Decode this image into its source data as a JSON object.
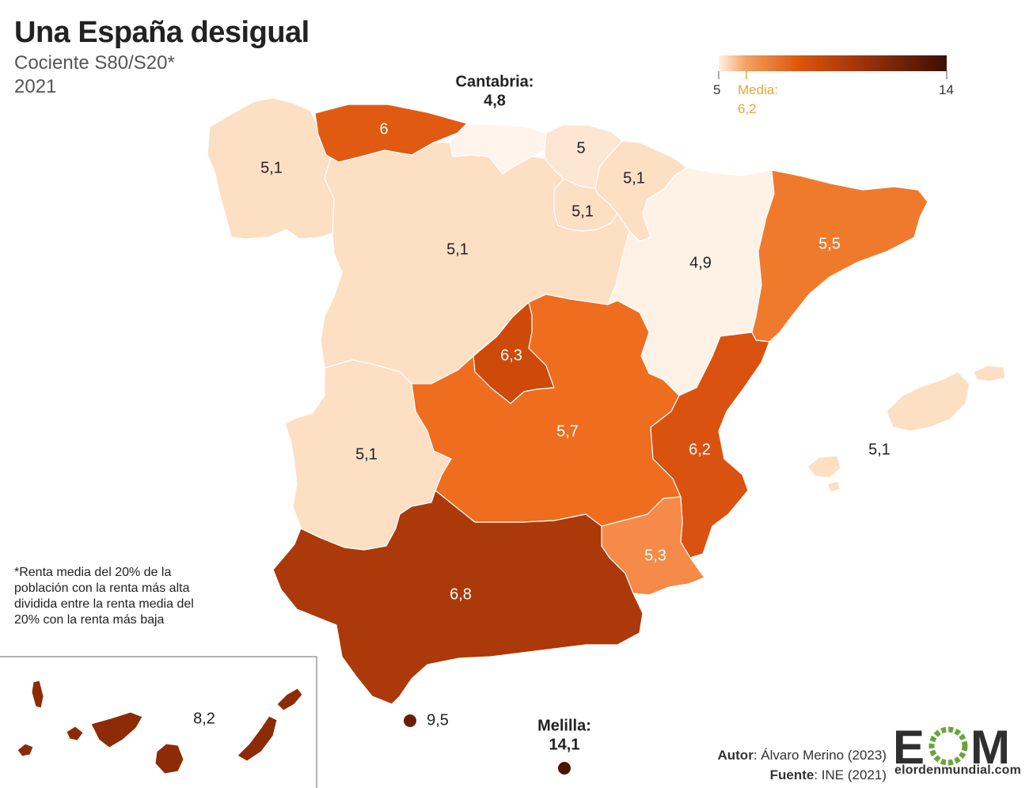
{
  "header": {
    "title": "Una España desigual",
    "subtitle": "Cociente S80/S20*",
    "year": "2021"
  },
  "legend": {
    "min": "5",
    "max": "14",
    "mean_label": "Media:",
    "mean_value": "6,2",
    "colors": [
      "#fdf2e6",
      "#f4a466",
      "#d4550b",
      "#a8380a",
      "#3b1003"
    ]
  },
  "regions": {
    "galicia": "5,1",
    "asturias": "6",
    "cantabria_name": "Cantabria:",
    "cantabria": "4,8",
    "pais_vasco": "5",
    "navarra": "5,1",
    "la_rioja": "5,1",
    "castilla_leon": "5,1",
    "aragon": "4,9",
    "cataluna": "5,5",
    "madrid": "6,3",
    "castilla_la_mancha": "5,7",
    "extremadura": "5,1",
    "valencia": "6,2",
    "baleares": "5,1",
    "murcia": "5,3",
    "andalucia": "6,8",
    "canarias": "8,2",
    "ceuta": "9,5",
    "melilla_name": "Melilla:",
    "melilla": "14,1"
  },
  "region_colors": {
    "galicia": "#fddfc4",
    "asturias": "#e15a12",
    "cantabria": "#fef4ec",
    "pais_vasco": "#fde6d2",
    "navarra": "#fddfc4",
    "la_rioja": "#fddfc4",
    "castilla_leon": "#fddfc4",
    "aragon": "#fef2e6",
    "cataluna": "#f07a2c",
    "madrid": "#cd4a0b",
    "castilla_la_mancha": "#ee6d1f",
    "extremadura": "#fddfc4",
    "valencia": "#d95210",
    "baleares": "#fddfc4",
    "murcia": "#f68a48",
    "andalucia": "#ab390a",
    "canarias": "#8c2b06",
    "ceuta": "#6a1e04",
    "melilla": "#4a1503"
  },
  "footnote": "*Renta media del 20% de la población con la renta más alta dividida entre la renta media del 20% con la renta más baja",
  "credits": {
    "author_label": "Autor",
    "author_value": ": Álvaro Merino (2023)",
    "source_label": "Fuente",
    "source_value": ": INE (2021)"
  },
  "logo": {
    "letters": "EOM",
    "site": "elordenmundial.com",
    "colors": [
      "#2f2f2f",
      "#6aa53b"
    ]
  }
}
